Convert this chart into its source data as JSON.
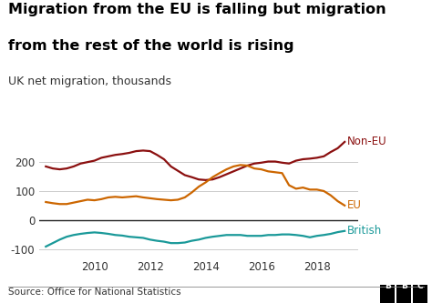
{
  "title_line1": "Migration from the EU is falling but migration",
  "title_line2": "from the rest of the world is rising",
  "subtitle": "UK net migration, thousands",
  "source": "Source: Office for National Statistics",
  "bbc_logo": "BBC",
  "background_color": "#ffffff",
  "colors": {
    "non_eu": "#8B1010",
    "eu": "#CC6600",
    "british": "#1A9999"
  },
  "labels": {
    "non_eu": "Non-EU",
    "eu": "EU",
    "british": "British"
  },
  "non_eu": {
    "x": [
      2008.25,
      2008.5,
      2008.75,
      2009.0,
      2009.25,
      2009.5,
      2009.75,
      2010.0,
      2010.25,
      2010.5,
      2010.75,
      2011.0,
      2011.25,
      2011.5,
      2011.75,
      2012.0,
      2012.25,
      2012.5,
      2012.75,
      2013.0,
      2013.25,
      2013.5,
      2013.75,
      2014.0,
      2014.25,
      2014.5,
      2014.75,
      2015.0,
      2015.25,
      2015.5,
      2015.75,
      2016.0,
      2016.25,
      2016.5,
      2016.75,
      2017.0,
      2017.25,
      2017.5,
      2017.75,
      2018.0,
      2018.25,
      2018.5,
      2018.75,
      2019.0
    ],
    "y": [
      185,
      178,
      175,
      178,
      185,
      195,
      200,
      205,
      215,
      220,
      225,
      228,
      232,
      238,
      240,
      238,
      225,
      210,
      185,
      170,
      155,
      148,
      140,
      138,
      140,
      148,
      158,
      168,
      178,
      188,
      195,
      198,
      202,
      202,
      198,
      195,
      205,
      210,
      212,
      215,
      220,
      235,
      248,
      270
    ]
  },
  "eu": {
    "x": [
      2008.25,
      2008.5,
      2008.75,
      2009.0,
      2009.25,
      2009.5,
      2009.75,
      2010.0,
      2010.25,
      2010.5,
      2010.75,
      2011.0,
      2011.25,
      2011.5,
      2011.75,
      2012.0,
      2012.25,
      2012.5,
      2012.75,
      2013.0,
      2013.25,
      2013.5,
      2013.75,
      2014.0,
      2014.25,
      2014.5,
      2014.75,
      2015.0,
      2015.25,
      2015.5,
      2015.75,
      2016.0,
      2016.25,
      2016.5,
      2016.75,
      2017.0,
      2017.25,
      2017.5,
      2017.75,
      2018.0,
      2018.25,
      2018.5,
      2018.75,
      2019.0
    ],
    "y": [
      62,
      58,
      55,
      55,
      60,
      65,
      70,
      68,
      72,
      78,
      80,
      78,
      80,
      82,
      78,
      75,
      72,
      70,
      68,
      70,
      78,
      95,
      115,
      130,
      148,
      162,
      175,
      185,
      190,
      188,
      178,
      175,
      168,
      165,
      162,
      120,
      108,
      112,
      105,
      105,
      100,
      85,
      65,
      50
    ]
  },
  "british": {
    "x": [
      2008.25,
      2008.5,
      2008.75,
      2009.0,
      2009.25,
      2009.5,
      2009.75,
      2010.0,
      2010.25,
      2010.5,
      2010.75,
      2011.0,
      2011.25,
      2011.5,
      2011.75,
      2012.0,
      2012.25,
      2012.5,
      2012.75,
      2013.0,
      2013.25,
      2013.5,
      2013.75,
      2014.0,
      2014.25,
      2014.5,
      2014.75,
      2015.0,
      2015.25,
      2015.5,
      2015.75,
      2016.0,
      2016.25,
      2016.5,
      2016.75,
      2017.0,
      2017.25,
      2017.5,
      2017.75,
      2018.0,
      2018.25,
      2018.5,
      2018.75,
      2019.0
    ],
    "y": [
      -92,
      -80,
      -68,
      -58,
      -52,
      -48,
      -45,
      -43,
      -45,
      -48,
      -52,
      -54,
      -58,
      -60,
      -62,
      -68,
      -72,
      -75,
      -80,
      -80,
      -78,
      -72,
      -68,
      -62,
      -58,
      -55,
      -52,
      -52,
      -52,
      -55,
      -55,
      -55,
      -52,
      -52,
      -50,
      -50,
      -52,
      -55,
      -60,
      -55,
      -52,
      -48,
      -42,
      -38
    ]
  },
  "ylim": [
    -130,
    310
  ],
  "yticks": [
    -100,
    0,
    100,
    200
  ],
  "xlim": [
    2008.0,
    2019.5
  ],
  "xticks": [
    2010,
    2012,
    2014,
    2016,
    2018
  ],
  "grid_color": "#cccccc",
  "zero_line_color": "#222222",
  "title_fontsize": 11.5,
  "subtitle_fontsize": 9,
  "tick_fontsize": 8.5,
  "label_fontsize": 8.5,
  "source_fontsize": 7.5,
  "linewidth": 1.6,
  "separator_color": "#888888"
}
